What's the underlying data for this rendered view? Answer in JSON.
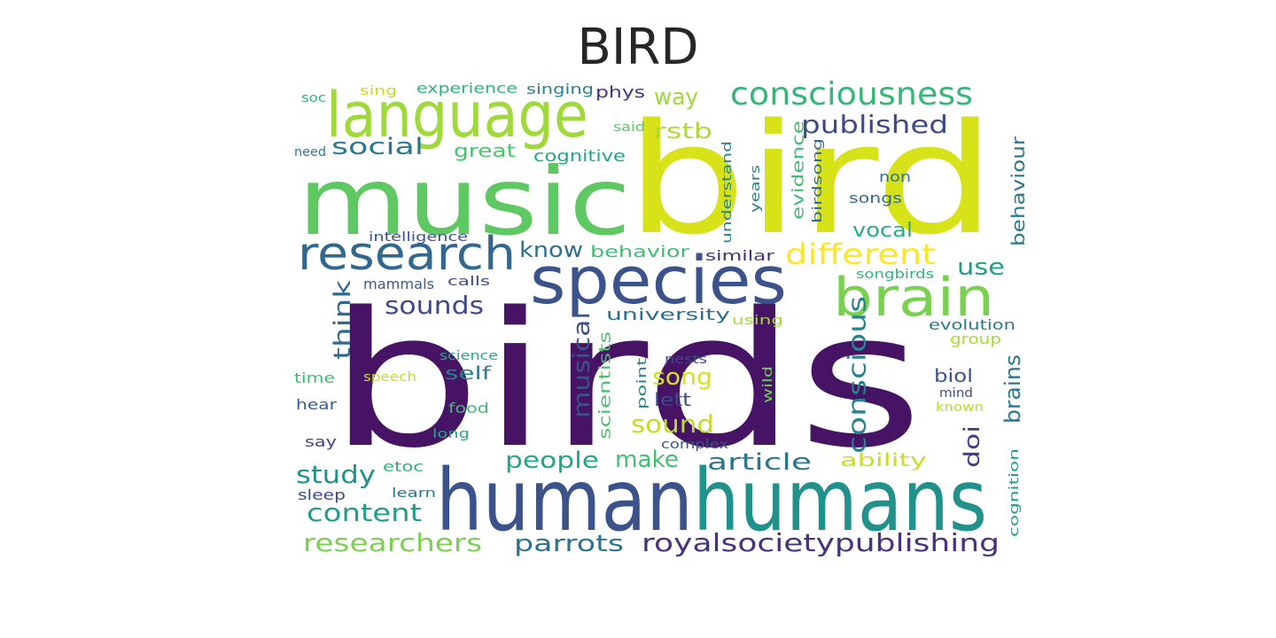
{
  "title": "BIRD",
  "chart_data": {
    "type": "wordcloud",
    "title": "BIRD",
    "colormap": "viridis",
    "words": [
      {
        "text": "birds",
        "color": "#471365"
      },
      {
        "text": "bird",
        "color": "#d8e219"
      },
      {
        "text": "music",
        "color": "#5ec962"
      },
      {
        "text": "human",
        "color": "#3b528b"
      },
      {
        "text": "humans",
        "color": "#21918c"
      },
      {
        "text": "species",
        "color": "#3b528b"
      },
      {
        "text": "language",
        "color": "#a0da39"
      },
      {
        "text": "research",
        "color": "#31688e"
      },
      {
        "text": "brain",
        "color": "#7ad151"
      },
      {
        "text": "consciousness",
        "color": "#35b779"
      },
      {
        "text": "royalsocietypublishing",
        "color": "#46327e"
      },
      {
        "text": "different",
        "color": "#fde725"
      },
      {
        "text": "published",
        "color": "#3e4989"
      },
      {
        "text": "social",
        "color": "#2a788e"
      },
      {
        "text": "conscious",
        "color": "#26828e"
      },
      {
        "text": "sounds",
        "color": "#3e4989"
      },
      {
        "text": "sound",
        "color": "#bddf26"
      },
      {
        "text": "think",
        "color": "#31688e"
      },
      {
        "text": "study",
        "color": "#21918c"
      },
      {
        "text": "content",
        "color": "#1f9e89"
      },
      {
        "text": "researchers",
        "color": "#7ad151"
      },
      {
        "text": "parrots",
        "color": "#2c728e"
      },
      {
        "text": "people",
        "color": "#22a884"
      },
      {
        "text": "make",
        "color": "#44bf70"
      },
      {
        "text": "article",
        "color": "#2a788e"
      },
      {
        "text": "song",
        "color": "#d2e21b"
      },
      {
        "text": "musical",
        "color": "#3b528b"
      },
      {
        "text": "brains",
        "color": "#2a788e"
      },
      {
        "text": "doi",
        "color": "#443a83"
      },
      {
        "text": "use",
        "color": "#1f9e89"
      },
      {
        "text": "way",
        "color": "#a0da39"
      },
      {
        "text": "know",
        "color": "#2c728e"
      },
      {
        "text": "rstb",
        "color": "#addc30"
      },
      {
        "text": "behaviour",
        "color": "#2a788e"
      },
      {
        "text": "vocal",
        "color": "#27ad81"
      },
      {
        "text": "ability",
        "color": "#c8e020"
      },
      {
        "text": "great",
        "color": "#4ac16d"
      },
      {
        "text": "cognitive",
        "color": "#22a884"
      },
      {
        "text": "behavior",
        "color": "#40bd72"
      },
      {
        "text": "university",
        "color": "#2e6e8e"
      },
      {
        "text": "scientists",
        "color": "#4ac16d"
      },
      {
        "text": "self",
        "color": "#26828e"
      },
      {
        "text": "lett",
        "color": "#3e4989"
      },
      {
        "text": "biol",
        "color": "#3b528b"
      },
      {
        "text": "evidence",
        "color": "#3dbc74"
      },
      {
        "text": "experience",
        "color": "#2fb47c"
      },
      {
        "text": "singing",
        "color": "#26828e"
      },
      {
        "text": "phys",
        "color": "#46327e"
      },
      {
        "text": "sing",
        "color": "#c2df23"
      },
      {
        "text": "soc",
        "color": "#35b779"
      },
      {
        "text": "said",
        "color": "#5ec962"
      },
      {
        "text": "need",
        "color": "#2a788e"
      },
      {
        "text": "intelligence",
        "color": "#3b528b"
      },
      {
        "text": "mammals",
        "color": "#365c8d"
      },
      {
        "text": "calls",
        "color": "#3e4989"
      },
      {
        "text": "similar",
        "color": "#472d7b"
      },
      {
        "text": "understand",
        "color": "#26828e"
      },
      {
        "text": "years",
        "color": "#26828e"
      },
      {
        "text": "birdsong",
        "color": "#31688e"
      },
      {
        "text": "non",
        "color": "#2c728e"
      },
      {
        "text": "songs",
        "color": "#31688e"
      },
      {
        "text": "songbirds",
        "color": "#2fb47c"
      },
      {
        "text": "using",
        "color": "#a5db36"
      },
      {
        "text": "evolution",
        "color": "#2a788e"
      },
      {
        "text": "group",
        "color": "#a5db36"
      },
      {
        "text": "science",
        "color": "#22a884"
      },
      {
        "text": "speech",
        "color": "#c2df23"
      },
      {
        "text": "nests",
        "color": "#3e4989"
      },
      {
        "text": "point",
        "color": "#26828e"
      },
      {
        "text": "wild",
        "color": "#6ece58"
      },
      {
        "text": "time",
        "color": "#3dbc74"
      },
      {
        "text": "hear",
        "color": "#365c8d"
      },
      {
        "text": "food",
        "color": "#3dbc74"
      },
      {
        "text": "long",
        "color": "#22a884"
      },
      {
        "text": "complex",
        "color": "#3b528b"
      },
      {
        "text": "mind",
        "color": "#3e4989"
      },
      {
        "text": "known",
        "color": "#b5de2b"
      },
      {
        "text": "say",
        "color": "#433e85"
      },
      {
        "text": "etoc",
        "color": "#2fb47c"
      },
      {
        "text": "learn",
        "color": "#2a788e"
      },
      {
        "text": "sleep",
        "color": "#3e4989"
      },
      {
        "text": "cognition",
        "color": "#1f9e89"
      }
    ]
  }
}
